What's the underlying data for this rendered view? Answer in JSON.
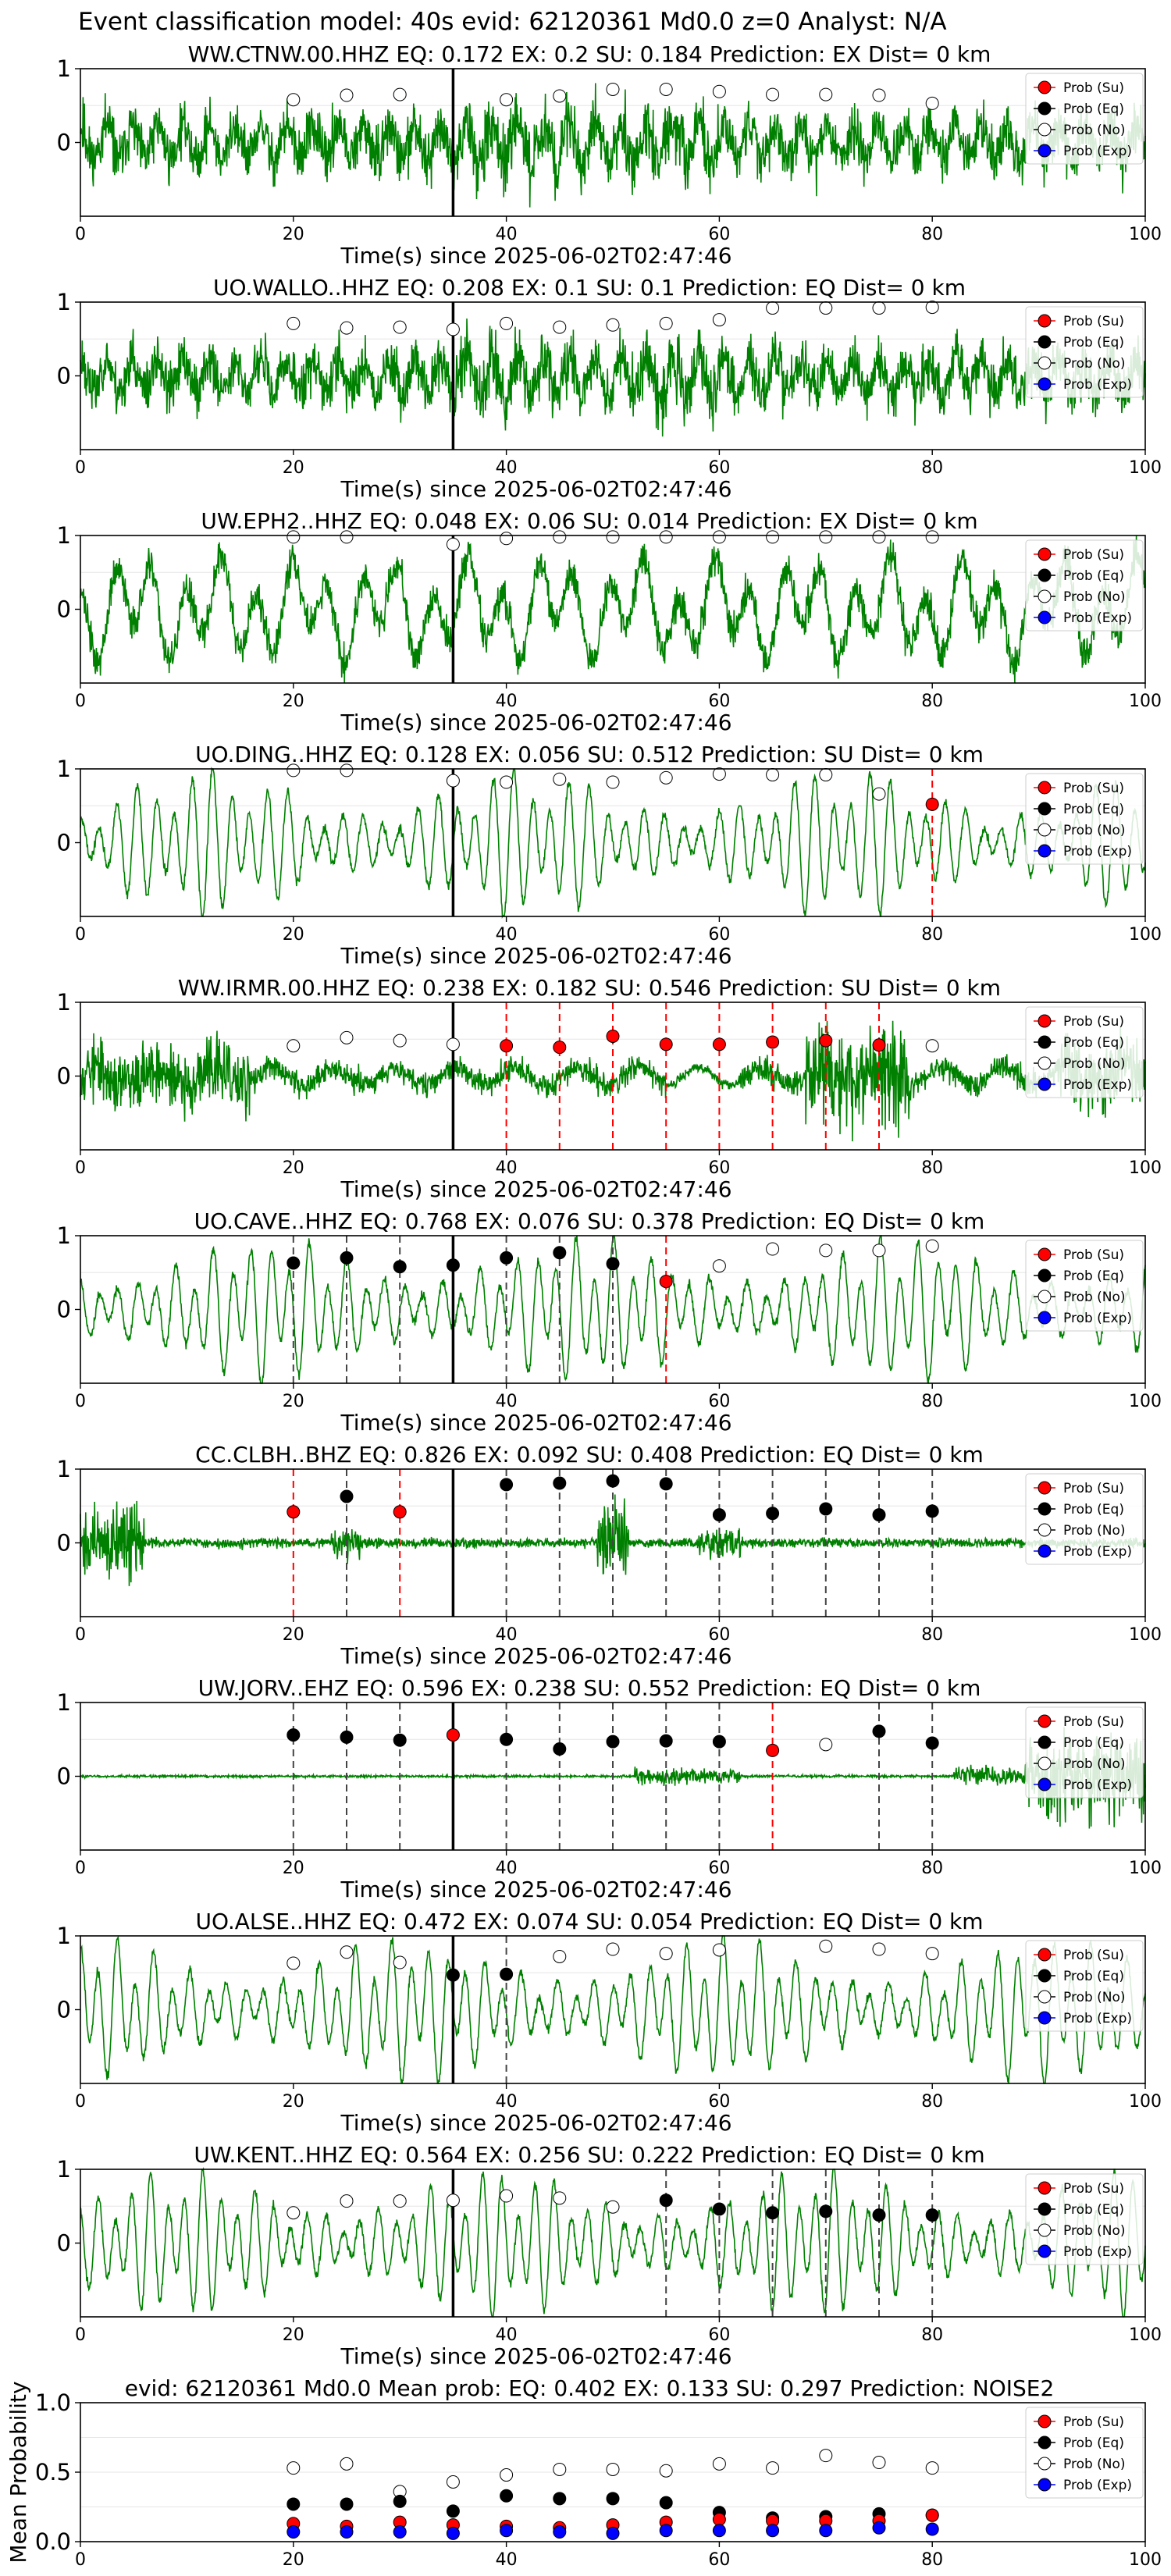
{
  "suptitle": "Event classification model: 40s evid: 62120361 Md0.0 z=0 Analyst: N/A",
  "legend_labels": [
    "Prob (Su)",
    "Prob (Eq)",
    "Prob (No)",
    "Prob (Exp)"
  ],
  "colors": {
    "waveform": "#008000",
    "su": "#ff0000",
    "eq": "#000000",
    "no": "#ffffff",
    "exp": "#0000ff",
    "event_line": "#000000"
  },
  "chart_data": [
    {
      "type": "line",
      "title": "WW.CTNW.00.HHZ   EQ: 0.172  EX: 0.2  SU: 0.184   Prediction: EX    Dist= 0 km",
      "xlabel": "Time(s) since 2025-06-02T02:47:46",
      "xlim": [
        0,
        100
      ],
      "ylim": [
        -1,
        1
      ],
      "xticks": [
        0,
        20,
        40,
        60,
        80,
        100
      ],
      "yticks": [
        0,
        1
      ],
      "event_time": 35,
      "waveform": "noisy",
      "seed": 11,
      "points": [
        [
          20,
          "no",
          0.58
        ],
        [
          25,
          "no",
          0.64
        ],
        [
          30,
          "no",
          0.65
        ],
        [
          40,
          "no",
          0.58
        ],
        [
          45,
          "no",
          0.63
        ],
        [
          50,
          "no",
          0.72
        ],
        [
          55,
          "no",
          0.72
        ],
        [
          60,
          "no",
          0.69
        ],
        [
          65,
          "no",
          0.65
        ],
        [
          70,
          "no",
          0.65
        ],
        [
          75,
          "no",
          0.64
        ],
        [
          80,
          "no",
          0.53
        ]
      ]
    },
    {
      "type": "line",
      "title": "UO.WALLO..HHZ   EQ: 0.208  EX: 0.1  SU: 0.1   Prediction: EQ    Dist= 0 km",
      "xlabel": "Time(s) since 2025-06-02T02:47:46",
      "xlim": [
        0,
        100
      ],
      "ylim": [
        -1,
        1
      ],
      "xticks": [
        0,
        20,
        40,
        60,
        80,
        100
      ],
      "yticks": [
        0,
        1
      ],
      "event_time": 35,
      "waveform": "noisy",
      "seed": 23,
      "points": [
        [
          20,
          "no",
          0.71
        ],
        [
          25,
          "no",
          0.65
        ],
        [
          30,
          "no",
          0.66
        ],
        [
          35,
          "no",
          0.63
        ],
        [
          40,
          "no",
          0.71
        ],
        [
          45,
          "no",
          0.66
        ],
        [
          50,
          "no",
          0.69
        ],
        [
          55,
          "no",
          0.71
        ],
        [
          60,
          "no",
          0.76
        ],
        [
          65,
          "no",
          0.92
        ],
        [
          70,
          "no",
          0.92
        ],
        [
          75,
          "no",
          0.92
        ],
        [
          80,
          "no",
          0.93
        ]
      ]
    },
    {
      "type": "line",
      "title": "UW.EPH2..HHZ   EQ: 0.048  EX: 0.06  SU: 0.014   Prediction: EX    Dist= 0 km",
      "xlabel": "Time(s) since 2025-06-02T02:47:46",
      "xlim": [
        0,
        100
      ],
      "ylim": [
        -1,
        1
      ],
      "xticks": [
        0,
        20,
        40,
        60,
        80,
        100
      ],
      "yticks": [
        0,
        1
      ],
      "event_time": 35,
      "waveform": "mixed",
      "seed": 37,
      "points": [
        [
          20,
          "no",
          0.98
        ],
        [
          25,
          "no",
          0.98
        ],
        [
          35,
          "no",
          0.88
        ],
        [
          40,
          "no",
          0.96
        ],
        [
          45,
          "no",
          0.98
        ],
        [
          50,
          "no",
          0.98
        ],
        [
          55,
          "no",
          0.98
        ],
        [
          60,
          "no",
          0.98
        ],
        [
          65,
          "no",
          0.98
        ],
        [
          70,
          "no",
          0.98
        ],
        [
          75,
          "no",
          0.98
        ],
        [
          80,
          "no",
          0.98
        ]
      ]
    },
    {
      "type": "line",
      "title": "UO.DING..HHZ   EQ: 0.128  EX: 0.056  SU: 0.512   Prediction: SU    Dist= 0 km",
      "xlabel": "Time(s) since 2025-06-02T02:47:46",
      "xlim": [
        0,
        100
      ],
      "ylim": [
        -1,
        1
      ],
      "xticks": [
        0,
        20,
        40,
        60,
        80,
        100
      ],
      "yticks": [
        0,
        1
      ],
      "event_time": 35,
      "waveform": "smooth",
      "seed": 41,
      "points": [
        [
          20,
          "no",
          0.98
        ],
        [
          25,
          "no",
          0.98
        ],
        [
          35,
          "no",
          0.84
        ],
        [
          40,
          "no",
          0.82
        ],
        [
          45,
          "no",
          0.86
        ],
        [
          50,
          "no",
          0.82
        ],
        [
          55,
          "no",
          0.88
        ],
        [
          60,
          "no",
          0.93
        ],
        [
          65,
          "no",
          0.92
        ],
        [
          70,
          "no",
          0.92
        ],
        [
          75,
          "no",
          0.66
        ],
        [
          80,
          "su",
          0.52
        ]
      ]
    },
    {
      "type": "line",
      "title": "WW.IRMR.00.HHZ   EQ: 0.238  EX: 0.182  SU: 0.546   Prediction: SU    Dist= 0 km",
      "xlabel": "Time(s) since 2025-06-02T02:47:46",
      "xlim": [
        0,
        100
      ],
      "ylim": [
        -1,
        1
      ],
      "xticks": [
        0,
        20,
        40,
        60,
        80,
        100
      ],
      "yticks": [
        0,
        1
      ],
      "event_time": 35,
      "waveform": "bursty",
      "seed": 53,
      "points": [
        [
          20,
          "no",
          0.41
        ],
        [
          25,
          "no",
          0.52
        ],
        [
          30,
          "no",
          0.48
        ],
        [
          35,
          "no",
          0.43
        ],
        [
          40,
          "su",
          0.41
        ],
        [
          45,
          "su",
          0.39
        ],
        [
          50,
          "su",
          0.54
        ],
        [
          55,
          "su",
          0.43
        ],
        [
          60,
          "su",
          0.43
        ],
        [
          65,
          "su",
          0.46
        ],
        [
          70,
          "su",
          0.48
        ],
        [
          75,
          "su",
          0.42
        ],
        [
          80,
          "no",
          0.41
        ]
      ]
    },
    {
      "type": "line",
      "title": "UO.CAVE..HHZ   EQ: 0.768  EX: 0.076  SU: 0.378   Prediction: EQ    Dist= 0 km",
      "xlabel": "Time(s) since 2025-06-02T02:47:46",
      "xlim": [
        0,
        100
      ],
      "ylim": [
        -1,
        1
      ],
      "xticks": [
        0,
        20,
        40,
        60,
        80,
        100
      ],
      "yticks": [
        0,
        1
      ],
      "event_time": 35,
      "waveform": "smooth",
      "seed": 67,
      "points": [
        [
          20,
          "eq",
          0.63
        ],
        [
          25,
          "eq",
          0.7
        ],
        [
          30,
          "eq",
          0.58
        ],
        [
          35,
          "eq",
          0.6
        ],
        [
          40,
          "eq",
          0.7
        ],
        [
          45,
          "eq",
          0.77
        ],
        [
          50,
          "eq",
          0.62
        ],
        [
          55,
          "su",
          0.38
        ],
        [
          60,
          "no",
          0.59
        ],
        [
          65,
          "no",
          0.82
        ],
        [
          70,
          "no",
          0.8
        ],
        [
          75,
          "no",
          0.8
        ],
        [
          80,
          "no",
          0.86
        ]
      ]
    },
    {
      "type": "line",
      "title": "CC.CLBH..BHZ   EQ: 0.826  EX: 0.092  SU: 0.408   Prediction: EQ    Dist= 0 km",
      "xlabel": "Time(s) since 2025-06-02T02:47:46",
      "xlim": [
        0,
        100
      ],
      "ylim": [
        -1,
        1
      ],
      "xticks": [
        0,
        20,
        40,
        60,
        80,
        100
      ],
      "yticks": [
        0,
        1
      ],
      "event_time": 35,
      "waveform": "quiet",
      "seed": 71,
      "points": [
        [
          20,
          "su",
          0.42
        ],
        [
          25,
          "eq",
          0.63
        ],
        [
          30,
          "su",
          0.42
        ],
        [
          40,
          "eq",
          0.79
        ],
        [
          45,
          "eq",
          0.81
        ],
        [
          50,
          "eq",
          0.84
        ],
        [
          55,
          "eq",
          0.8
        ],
        [
          60,
          "eq",
          0.38
        ],
        [
          65,
          "eq",
          0.4
        ],
        [
          70,
          "eq",
          0.46
        ],
        [
          75,
          "eq",
          0.38
        ],
        [
          80,
          "eq",
          0.43
        ]
      ]
    },
    {
      "type": "line",
      "title": "UW.JORV..EHZ   EQ: 0.596  EX: 0.238  SU: 0.552   Prediction: EQ    Dist= 0 km",
      "xlabel": "Time(s) since 2025-06-02T02:47:46",
      "xlim": [
        0,
        100
      ],
      "ylim": [
        -1,
        1
      ],
      "xticks": [
        0,
        20,
        40,
        60,
        80,
        100
      ],
      "yticks": [
        0,
        1
      ],
      "event_time": 35,
      "waveform": "flat",
      "seed": 83,
      "points": [
        [
          20,
          "eq",
          0.56
        ],
        [
          25,
          "eq",
          0.53
        ],
        [
          30,
          "eq",
          0.49
        ],
        [
          35,
          "su",
          0.56
        ],
        [
          40,
          "eq",
          0.5
        ],
        [
          45,
          "eq",
          0.37
        ],
        [
          50,
          "eq",
          0.47
        ],
        [
          55,
          "eq",
          0.48
        ],
        [
          60,
          "eq",
          0.47
        ],
        [
          65,
          "su",
          0.35
        ],
        [
          70,
          "no",
          0.43
        ],
        [
          75,
          "eq",
          0.61
        ],
        [
          80,
          "eq",
          0.45
        ]
      ]
    },
    {
      "type": "line",
      "title": "UO.ALSE..HHZ   EQ: 0.472  EX: 0.074  SU: 0.054   Prediction: EQ    Dist= 0 km",
      "xlabel": "Time(s) since 2025-06-02T02:47:46",
      "xlim": [
        0,
        100
      ],
      "ylim": [
        -1,
        1
      ],
      "xticks": [
        0,
        20,
        40,
        60,
        80,
        100
      ],
      "yticks": [
        0,
        1
      ],
      "event_time": 35,
      "waveform": "smooth",
      "seed": 97,
      "points": [
        [
          20,
          "no",
          0.63
        ],
        [
          25,
          "no",
          0.78
        ],
        [
          30,
          "no",
          0.64
        ],
        [
          35,
          "eq",
          0.47
        ],
        [
          40,
          "eq",
          0.48
        ],
        [
          45,
          "no",
          0.72
        ],
        [
          50,
          "no",
          0.82
        ],
        [
          55,
          "no",
          0.76
        ],
        [
          60,
          "no",
          0.81
        ],
        [
          70,
          "no",
          0.86
        ],
        [
          75,
          "no",
          0.82
        ],
        [
          80,
          "no",
          0.76
        ]
      ]
    },
    {
      "type": "line",
      "title": "UW.KENT..HHZ   EQ: 0.564  EX: 0.256  SU: 0.222   Prediction: EQ    Dist= 0 km",
      "xlabel": "Time(s) since 2025-06-02T02:47:46",
      "xlim": [
        0,
        100
      ],
      "ylim": [
        -1,
        1
      ],
      "xticks": [
        0,
        20,
        40,
        60,
        80,
        100
      ],
      "yticks": [
        0,
        1
      ],
      "event_time": 35,
      "waveform": "smooth",
      "seed": 101,
      "points": [
        [
          20,
          "no",
          0.41
        ],
        [
          25,
          "no",
          0.57
        ],
        [
          30,
          "no",
          0.57
        ],
        [
          35,
          "no",
          0.58
        ],
        [
          40,
          "no",
          0.64
        ],
        [
          45,
          "no",
          0.61
        ],
        [
          50,
          "no",
          0.49
        ],
        [
          55,
          "eq",
          0.58
        ],
        [
          60,
          "eq",
          0.46
        ],
        [
          65,
          "eq",
          0.41
        ],
        [
          70,
          "eq",
          0.43
        ],
        [
          75,
          "eq",
          0.38
        ],
        [
          80,
          "eq",
          0.38
        ]
      ]
    },
    {
      "type": "scatter",
      "title": "evid: 62120361  Md0.0   Mean prob:   EQ: 0.402  EX: 0.133  SU: 0.297   Prediction: NOISE2",
      "ylabel": "Mean Probability",
      "xlim": [
        0,
        100
      ],
      "ylim": [
        0,
        1
      ],
      "xticks": [
        0,
        20,
        40,
        60,
        80,
        100
      ],
      "yticks": [
        "0.0",
        "0.5",
        "1.0"
      ],
      "x": [
        20,
        25,
        30,
        35,
        40,
        45,
        50,
        55,
        60,
        65,
        70,
        75,
        80
      ],
      "series": [
        {
          "name": "Prob (No)",
          "key": "no",
          "values": [
            0.53,
            0.56,
            0.36,
            0.43,
            0.48,
            0.52,
            0.52,
            0.51,
            0.56,
            0.53,
            0.62,
            0.57,
            0.53
          ]
        },
        {
          "name": "Prob (Eq)",
          "key": "eq",
          "values": [
            0.27,
            0.27,
            0.29,
            0.22,
            0.33,
            0.31,
            0.31,
            0.28,
            0.21,
            0.17,
            0.18,
            0.2,
            0.19
          ]
        },
        {
          "name": "Prob (Su)",
          "key": "su",
          "values": [
            0.13,
            0.11,
            0.14,
            0.12,
            0.11,
            0.1,
            0.12,
            0.14,
            0.16,
            0.15,
            0.15,
            0.15,
            0.19
          ]
        },
        {
          "name": "Prob (Exp)",
          "key": "exp",
          "values": [
            0.07,
            0.07,
            0.07,
            0.06,
            0.08,
            0.07,
            0.06,
            0.08,
            0.08,
            0.08,
            0.08,
            0.1,
            0.09
          ]
        }
      ]
    }
  ]
}
